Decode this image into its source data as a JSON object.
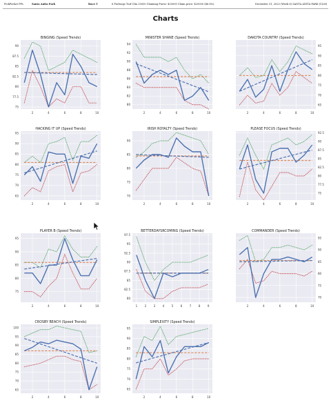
{
  "header": {
    "source": "PickPocket PPs",
    "track": "Santa Anita Park",
    "race": "Race 5",
    "conditions": "6 Furlongs Turf Clm 25000 Claiming Purse: $25000 Claim price: $25000 (46.8%)",
    "date": "December 31, 2023 (Week 6) SANTA ANITA PARK (CLM)"
  },
  "page_title": "Charts",
  "colors": {
    "plot_bg": "#eaeaf2",
    "grid": "#ffffff",
    "speed": "#4c72b0",
    "trend": "#4c72b0",
    "mean": "#dd8452",
    "upper": "#55a868",
    "lower": "#c44e52"
  },
  "chart_data": [
    {
      "type": "line",
      "title": "BINGING (Speed Trends)",
      "x": [
        1,
        2,
        3,
        4,
        5,
        6,
        7,
        8,
        9,
        10
      ],
      "xticks": [
        2,
        4,
        6,
        8,
        10
      ],
      "ylim": [
        74.5,
        91.5
      ],
      "yticks": [
        75.0,
        77.5,
        80.0,
        82.5,
        85.0,
        87.5,
        90.0
      ],
      "ytick_side": "left",
      "series": [
        {
          "role": "speed",
          "values": [
            81,
            89,
            83,
            75,
            81,
            78,
            88,
            85,
            81,
            80
          ]
        },
        {
          "role": "upper",
          "values": [
            87,
            91,
            90,
            84,
            85,
            86,
            89,
            88,
            87,
            86
          ]
        },
        {
          "role": "lower",
          "values": [
            76,
            84,
            80,
            75,
            77,
            76,
            80,
            80,
            76,
            76
          ]
        }
      ],
      "mean": 83.5,
      "trend": [
        83.5,
        83.0
      ]
    },
    {
      "type": "line",
      "title": "MINISTER SHANE (Speed Trends)",
      "x": [
        1,
        2,
        3,
        4,
        5,
        6,
        7,
        8,
        9,
        10
      ],
      "xticks": [
        2,
        4,
        6,
        8,
        10
      ],
      "ylim": [
        79,
        95
      ],
      "yticks": [
        80,
        82,
        84,
        86,
        88,
        90,
        92,
        94
      ],
      "ytick_side": "left",
      "series": [
        {
          "role": "speed",
          "values": [
            90,
            85,
            87,
            88,
            87,
            88,
            81,
            82,
            84,
            81
          ]
        },
        {
          "role": "upper",
          "values": [
            94,
            91,
            91,
            91,
            90,
            91,
            88,
            86,
            87,
            85
          ]
        },
        {
          "role": "lower",
          "values": [
            85,
            84,
            84,
            84,
            84,
            84,
            81,
            80,
            80,
            79
          ]
        }
      ],
      "mean": 86.5,
      "trend": [
        89.5,
        83.0
      ]
    },
    {
      "type": "line",
      "title": "DAKOTA COUNTRY (Speed Trends)",
      "x": [
        1,
        2,
        3,
        4,
        5,
        6,
        7,
        8,
        9,
        10
      ],
      "xticks": [
        2,
        4,
        6,
        8,
        10
      ],
      "ylim": [
        63,
        98
      ],
      "yticks": [
        65,
        70,
        75,
        80,
        85,
        90,
        95
      ],
      "ytick_side": "right",
      "series": [
        {
          "role": "speed",
          "values": [
            72,
            78,
            69,
            73,
            85,
            72,
            83,
            92,
            86,
            83
          ]
        },
        {
          "role": "upper",
          "values": [
            80,
            84,
            79,
            80,
            88,
            82,
            87,
            95,
            93,
            91
          ]
        },
        {
          "role": "lower",
          "values": [
            65,
            70,
            66,
            67,
            76,
            70,
            74,
            82,
            79,
            76
          ]
        }
      ],
      "mean": 80.0,
      "trend": [
        72.0,
        88.0
      ]
    },
    {
      "type": "line",
      "title": "HACKING IT UP (Speed Trends)",
      "x": [
        1,
        2,
        3,
        4,
        5,
        6,
        7,
        8,
        9,
        10
      ],
      "xticks": [
        2,
        4,
        6,
        8,
        10
      ],
      "ylim": [
        63,
        96
      ],
      "yticks": [
        65,
        70,
        75,
        80,
        85,
        90,
        95
      ],
      "ytick_side": "left",
      "series": [
        {
          "role": "speed",
          "values": [
            75,
            79,
            72,
            86,
            85,
            85,
            71,
            84,
            83,
            90
          ]
        },
        {
          "role": "upper",
          "values": [
            81,
            84,
            81,
            90,
            91,
            93,
            82,
            91,
            91,
            94
          ]
        },
        {
          "role": "lower",
          "values": [
            65,
            69,
            67,
            77,
            79,
            80,
            67,
            76,
            77,
            80
          ]
        }
      ],
      "mean": 81.0,
      "trend": [
        76.0,
        86.5
      ]
    },
    {
      "type": "line",
      "title": "IRISH ROYALTY (Speed Trends)",
      "x": [
        1,
        2,
        3,
        4,
        5,
        6,
        7,
        8,
        9,
        10
      ],
      "xticks": [
        2,
        4,
        6,
        8,
        10
      ],
      "ylim": [
        68.5,
        93.5
      ],
      "yticks": [
        70,
        75,
        80,
        85,
        90
      ],
      "ytick_side": "left",
      "series": [
        {
          "role": "speed",
          "values": [
            80,
            83,
            85,
            85,
            84,
            91,
            88,
            86,
            86,
            70
          ]
        },
        {
          "role": "upper",
          "values": [
            84,
            86,
            89,
            90,
            90,
            93,
            92,
            91,
            90,
            85
          ]
        },
        {
          "role": "lower",
          "values": [
            72,
            76,
            80,
            80,
            80,
            84,
            82,
            80,
            79,
            70
          ]
        }
      ],
      "mean": 84.5,
      "trend": [
        85.0,
        84.0
      ]
    },
    {
      "type": "line",
      "title": "PLEASE FOCUS (Speed Trends)",
      "x": [
        1,
        2,
        3,
        4,
        5,
        6,
        7,
        8,
        9,
        10
      ],
      "xticks": [
        2,
        4,
        6,
        8,
        10
      ],
      "ylim": [
        73,
        93
      ],
      "yticks": [
        75.0,
        77.5,
        80.0,
        82.5,
        85.0,
        87.5,
        90.0,
        92.5
      ],
      "ytick_side": "right",
      "series": [
        {
          "role": "speed",
          "values": [
            82,
            89,
            79,
            75,
            87,
            88,
            88,
            84,
            86,
            89
          ]
        },
        {
          "role": "upper",
          "values": [
            86,
            91,
            86,
            82,
            89,
            90,
            91,
            89,
            90,
            92
          ]
        },
        {
          "role": "lower",
          "values": [
            74,
            84,
            76,
            73,
            77,
            81,
            81,
            80,
            80,
            82
          ]
        }
      ],
      "mean": 84.5,
      "trend": [
        82.0,
        87.5
      ]
    },
    {
      "type": "line",
      "title": "PLAYER B (Speed Trends)",
      "x": [
        1,
        2,
        3,
        4,
        5,
        6,
        7,
        8,
        9,
        10
      ],
      "xticks": [
        2,
        4,
        6,
        8,
        10
      ],
      "ylim": [
        71,
        97
      ],
      "yticks": [
        75,
        80,
        85,
        90,
        95
      ],
      "ytick_side": "left",
      "series": [
        {
          "role": "speed",
          "values": [
            82,
            82,
            78,
            85,
            85,
            95,
            87,
            81,
            81,
            87
          ]
        },
        {
          "role": "upper",
          "values": [
            86,
            86,
            84,
            91,
            90,
            96,
            91,
            88,
            88,
            92
          ]
        },
        {
          "role": "lower",
          "values": [
            75,
            75,
            73,
            77,
            80,
            89,
            82,
            76,
            76,
            80
          ]
        }
      ],
      "mean": 86.0,
      "trend": [
        83.5,
        87.5
      ]
    },
    {
      "type": "line",
      "title": "BETTERDAYSRCOMING (Speed Trends)",
      "x": [
        1,
        2,
        3,
        4,
        5,
        6,
        7,
        8,
        9
      ],
      "xticks": [
        1,
        2,
        3,
        4,
        5,
        6,
        7,
        8,
        9
      ],
      "ylim": [
        79,
        98
      ],
      "yticks": [
        80.0,
        82.5,
        85.0,
        87.5,
        90.0,
        92.5,
        95.0,
        97.5
      ],
      "ytick_side": "left",
      "series": [
        {
          "role": "speed",
          "values": [
            92,
            85,
            80,
            87,
            86,
            87,
            87,
            87,
            88
          ]
        },
        {
          "role": "upper",
          "values": [
            97,
            90,
            85,
            88,
            90,
            90,
            90,
            91,
            92
          ]
        },
        {
          "role": "lower",
          "values": [
            88,
            82,
            80,
            80,
            82,
            83,
            83,
            83,
            84
          ]
        }
      ],
      "mean": 87.0,
      "trend": [
        87.0,
        87.0
      ]
    },
    {
      "type": "line",
      "title": "COMMANDER (Speed Trends)",
      "x": [
        1,
        2,
        3,
        4,
        5,
        6,
        7,
        8,
        9,
        10
      ],
      "xticks": [
        2,
        4,
        6,
        8,
        10
      ],
      "ylim": [
        68,
        97
      ],
      "yticks": [
        70,
        75,
        80,
        85,
        90,
        95
      ],
      "ytick_side": "right",
      "series": [
        {
          "role": "speed",
          "values": [
            88,
            91,
            70,
            80,
            86,
            86,
            87,
            86,
            85,
            87
          ]
        },
        {
          "role": "upper",
          "values": [
            94,
            96,
            85,
            86,
            91,
            91,
            92,
            91,
            90,
            92
          ]
        },
        {
          "role": "lower",
          "values": [
            82,
            86,
            76,
            77,
            81,
            80,
            80,
            80,
            79,
            81
          ]
        }
      ],
      "mean": 85.5,
      "trend": [
        85.0,
        85.5
      ]
    },
    {
      "type": "line",
      "title": "CROSBY BEACH (Speed Trends)",
      "x": [
        1,
        2,
        3,
        4,
        5,
        6,
        7,
        8,
        9,
        10
      ],
      "xticks": [
        2,
        4,
        6,
        8,
        10
      ],
      "ylim": [
        63,
        102
      ],
      "yticks": [
        65,
        70,
        75,
        80,
        85,
        90,
        95,
        100
      ],
      "ytick_side": "left",
      "series": [
        {
          "role": "speed",
          "values": [
            87,
            89,
            92,
            91,
            93,
            92,
            91,
            88,
            65,
            78
          ]
        },
        {
          "role": "upper",
          "values": [
            95,
            97,
            99,
            99,
            101,
            100,
            99,
            98,
            86,
            87
          ]
        },
        {
          "role": "lower",
          "values": [
            78,
            79,
            80,
            82,
            84,
            84,
            82,
            81,
            65,
            68
          ]
        }
      ],
      "mean": 87.0,
      "trend": [
        94.0,
        80.0
      ]
    },
    {
      "type": "line",
      "title": "SIMPLEXITY (Speed Trends)",
      "x": [
        1,
        2,
        3,
        4,
        5,
        6,
        7,
        8,
        9,
        10
      ],
      "xticks": [
        2,
        4,
        6,
        8,
        10
      ],
      "ylim": [
        63,
        97
      ],
      "yticks": [
        65,
        70,
        75,
        80,
        85,
        90,
        95
      ],
      "ytick_side": "left",
      "series": [
        {
          "role": "speed",
          "values": [
            70,
            86,
            81,
            89,
            73,
            81,
            86,
            86,
            86,
            88
          ]
        },
        {
          "role": "upper",
          "values": [
            81,
            91,
            89,
            96,
            87,
            91,
            92,
            93,
            94,
            95
          ]
        },
        {
          "role": "lower",
          "values": [
            65,
            75,
            75,
            80,
            72,
            75,
            79,
            80,
            80,
            80
          ]
        }
      ],
      "mean": 83.0,
      "trend": [
        78.0,
        88.0
      ]
    }
  ]
}
